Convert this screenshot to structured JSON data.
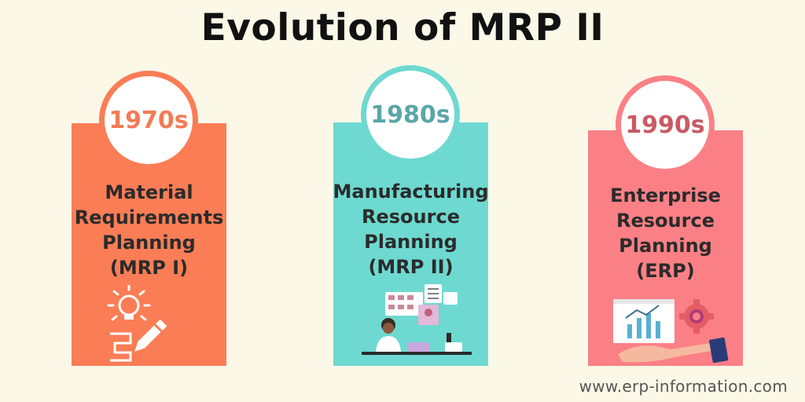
{
  "title": "Evolution of MRP II",
  "cards": [
    {
      "decade": "1970s",
      "lines": [
        "Material",
        "Requirements",
        "Planning",
        "(MRP I)"
      ],
      "panel_color": "#fa7d55",
      "decade_color": "#f47b55",
      "illustration": "lightbulb-pencil-icon"
    },
    {
      "decade": "1980s",
      "lines": [
        "Manufacturing",
        "Resource",
        "Planning",
        "(MRP II)"
      ],
      "panel_color": "#6ed9d0",
      "decade_color": "#5aa6a6",
      "illustration": "person-at-desk-icon"
    },
    {
      "decade": "1990s",
      "lines": [
        "Enterprise",
        "Resource",
        "Planning",
        "(ERP)"
      ],
      "panel_color": "#fb8085",
      "decade_color": "#c95a63",
      "illustration": "chart-gear-hand-icon"
    }
  ],
  "footer": "www.erp-information.com"
}
